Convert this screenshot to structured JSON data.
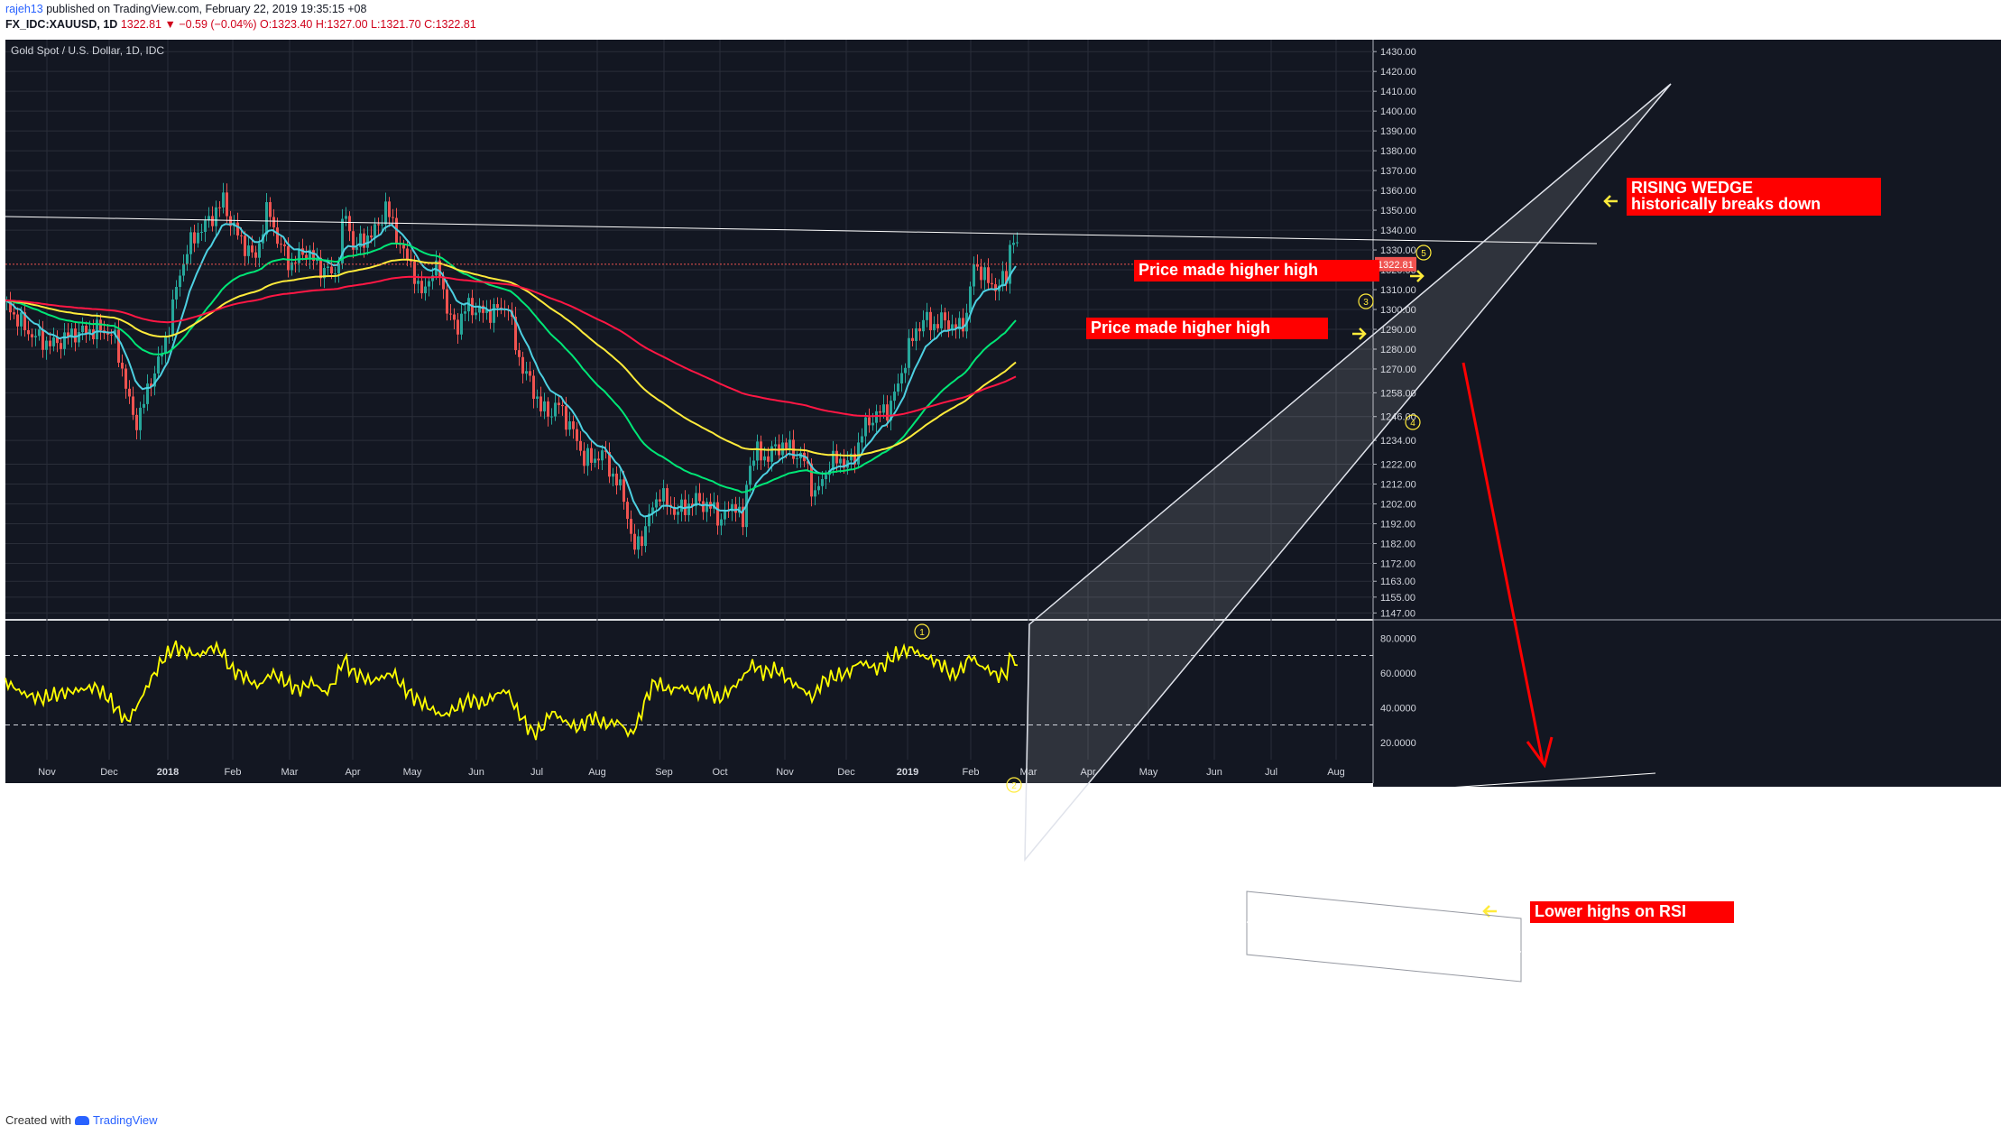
{
  "header": {
    "author": "rajeh13",
    "published": "published on TradingView.com, February 22, 2019 19:35:15 +08",
    "symbol": "FX_IDC:XAUUSD, 1D",
    "last": "1322.81",
    "change": "▼ −0.59 (−0.04%)",
    "ohlc": "O:1323.40 H:1327.00 L:1321.70 C:1322.81"
  },
  "chart_data": {
    "type": "candlestick",
    "title": "Gold Spot / U.S. Dollar, 1D, IDC",
    "price_axis": {
      "ylim": [
        1144,
        1436
      ],
      "ticks": [
        "1430.00",
        "1420.00",
        "1410.00",
        "1400.00",
        "1390.00",
        "1380.00",
        "1370.00",
        "1360.00",
        "1350.00",
        "1340.00",
        "1330.00",
        "1320.00",
        "1310.00",
        "1300.00",
        "1290.00",
        "1280.00",
        "1270.00",
        "1258.00",
        "1246.00",
        "1234.00",
        "1222.00",
        "1212.00",
        "1202.00",
        "1192.00",
        "1182.00",
        "1172.00",
        "1163.00",
        "1155.00",
        "1147.00"
      ],
      "current_price": "1322.81"
    },
    "time_axis": [
      "Nov",
      "Dec",
      "2018",
      "Feb",
      "Mar",
      "Apr",
      "May",
      "Jun",
      "Jul",
      "Aug",
      "Sep",
      "Oct",
      "Nov",
      "Dec",
      "2019",
      "Feb",
      "Mar",
      "Apr",
      "May",
      "Jun",
      "Jul",
      "Aug"
    ],
    "price_path": [
      [
        0,
        1302
      ],
      [
        25,
        1288
      ],
      [
        50,
        1282
      ],
      [
        75,
        1288
      ],
      [
        100,
        1290
      ],
      [
        118,
        1288
      ],
      [
        128,
        1270
      ],
      [
        135,
        1255
      ],
      [
        142,
        1242
      ],
      [
        150,
        1250
      ],
      [
        160,
        1265
      ],
      [
        170,
        1275
      ],
      [
        180,
        1292
      ],
      [
        190,
        1315
      ],
      [
        200,
        1330
      ],
      [
        210,
        1338
      ],
      [
        225,
        1345
      ],
      [
        240,
        1355
      ],
      [
        250,
        1342
      ],
      [
        260,
        1335
      ],
      [
        275,
        1325
      ],
      [
        290,
        1352
      ],
      [
        300,
        1335
      ],
      [
        315,
        1322
      ],
      [
        330,
        1330
      ],
      [
        350,
        1320
      ],
      [
        365,
        1318
      ],
      [
        375,
        1350
      ],
      [
        385,
        1330
      ],
      [
        395,
        1335
      ],
      [
        410,
        1340
      ],
      [
        420,
        1352
      ],
      [
        430,
        1340
      ],
      [
        440,
        1328
      ],
      [
        450,
        1322
      ],
      [
        458,
        1306
      ],
      [
        470,
        1318
      ],
      [
        480,
        1320
      ],
      [
        490,
        1295
      ],
      [
        500,
        1292
      ],
      [
        510,
        1302
      ],
      [
        520,
        1300
      ],
      [
        530,
        1298
      ],
      [
        545,
        1300
      ],
      [
        556,
        1302
      ],
      [
        562,
        1285
      ],
      [
        572,
        1270
      ],
      [
        582,
        1262
      ],
      [
        592,
        1250
      ],
      [
        602,
        1248
      ],
      [
        612,
        1252
      ],
      [
        620,
        1245
      ],
      [
        628,
        1238
      ],
      [
        640,
        1225
      ],
      [
        650,
        1224
      ],
      [
        660,
        1228
      ],
      [
        670,
        1218
      ],
      [
        680,
        1210
      ],
      [
        688,
        1198
      ],
      [
        694,
        1178
      ],
      [
        700,
        1182
      ],
      [
        708,
        1190
      ],
      [
        716,
        1200
      ],
      [
        724,
        1208
      ],
      [
        732,
        1202
      ],
      [
        742,
        1198
      ],
      [
        752,
        1200
      ],
      [
        762,
        1204
      ],
      [
        772,
        1202
      ],
      [
        782,
        1200
      ],
      [
        790,
        1194
      ],
      [
        800,
        1198
      ],
      [
        808,
        1203
      ],
      [
        816,
        1190
      ],
      [
        822,
        1222
      ],
      [
        832,
        1228
      ],
      [
        842,
        1225
      ],
      [
        852,
        1230
      ],
      [
        862,
        1232
      ],
      [
        872,
        1228
      ],
      [
        882,
        1225
      ],
      [
        888,
        1220
      ],
      [
        895,
        1205
      ],
      [
        902,
        1212
      ],
      [
        912,
        1222
      ],
      [
        922,
        1225
      ],
      [
        932,
        1222
      ],
      [
        940,
        1226
      ],
      [
        948,
        1238
      ],
      [
        958,
        1245
      ],
      [
        968,
        1248
      ],
      [
        978,
        1250
      ],
      [
        988,
        1262
      ],
      [
        998,
        1278
      ],
      [
        1008,
        1290
      ],
      [
        1018,
        1295
      ],
      [
        1028,
        1292
      ],
      [
        1040,
        1295
      ],
      [
        1050,
        1290
      ],
      [
        1058,
        1292
      ],
      [
        1064,
        1298
      ],
      [
        1072,
        1322
      ],
      [
        1080,
        1320
      ],
      [
        1090,
        1312
      ],
      [
        1098,
        1312
      ],
      [
        1108,
        1316
      ],
      [
        1114,
        1340
      ],
      [
        1120,
        1330
      ],
      [
        1122,
        1323
      ]
    ],
    "moving_averages": [
      "EMA (cyan)",
      "EMA 50 (green)",
      "EMA 100 (yellow)",
      "EMA 200 (red)"
    ],
    "annotations": [
      {
        "text": "RISING WEDGE",
        "color": "#ff0000"
      },
      {
        "text": "historically breaks down",
        "color": "#ff0000"
      },
      {
        "text": "Price made higher high",
        "color": "#ff0000"
      },
      {
        "text": "Price made higher high",
        "color": "#ff0000"
      },
      {
        "text": "Lower highs on RSI",
        "color": "#ff0000"
      }
    ],
    "wave_labels": [
      "1",
      "2",
      "3",
      "4",
      "5"
    ],
    "rsi": {
      "ylim": [
        10,
        90
      ],
      "ticks": [
        "80.0000",
        "60.0000",
        "40.0000",
        "20.0000"
      ],
      "levels": [
        70,
        30
      ],
      "path": [
        [
          0,
          55
        ],
        [
          20,
          48
        ],
        [
          40,
          45
        ],
        [
          60,
          48
        ],
        [
          80,
          50
        ],
        [
          100,
          52
        ],
        [
          115,
          45
        ],
        [
          125,
          38
        ],
        [
          135,
          32
        ],
        [
          145,
          40
        ],
        [
          160,
          55
        ],
        [
          175,
          68
        ],
        [
          188,
          75
        ],
        [
          200,
          72
        ],
        [
          215,
          70
        ],
        [
          230,
          75
        ],
        [
          240,
          72
        ],
        [
          250,
          62
        ],
        [
          265,
          58
        ],
        [
          280,
          52
        ],
        [
          295,
          60
        ],
        [
          310,
          55
        ],
        [
          325,
          50
        ],
        [
          340,
          55
        ],
        [
          355,
          48
        ],
        [
          365,
          55
        ],
        [
          375,
          68
        ],
        [
          385,
          60
        ],
        [
          395,
          58
        ],
        [
          405,
          55
        ],
        [
          420,
          58
        ],
        [
          430,
          60
        ],
        [
          440,
          52
        ],
        [
          455,
          45
        ],
        [
          470,
          40
        ],
        [
          485,
          35
        ],
        [
          500,
          40
        ],
        [
          515,
          45
        ],
        [
          530,
          42
        ],
        [
          545,
          48
        ],
        [
          556,
          50
        ],
        [
          565,
          40
        ],
        [
          575,
          32
        ],
        [
          585,
          25
        ],
        [
          595,
          28
        ],
        [
          605,
          38
        ],
        [
          620,
          32
        ],
        [
          635,
          28
        ],
        [
          650,
          35
        ],
        [
          665,
          30
        ],
        [
          680,
          32
        ],
        [
          692,
          24
        ],
        [
          700,
          30
        ],
        [
          710,
          45
        ],
        [
          720,
          55
        ],
        [
          735,
          50
        ],
        [
          750,
          52
        ],
        [
          765,
          48
        ],
        [
          780,
          50
        ],
        [
          790,
          44
        ],
        [
          798,
          48
        ],
        [
          808,
          52
        ],
        [
          818,
          58
        ],
        [
          828,
          65
        ],
        [
          840,
          60
        ],
        [
          855,
          62
        ],
        [
          870,
          55
        ],
        [
          885,
          50
        ],
        [
          895,
          45
        ],
        [
          905,
          55
        ],
        [
          920,
          58
        ],
        [
          935,
          60
        ],
        [
          945,
          66
        ],
        [
          955,
          65
        ],
        [
          965,
          62
        ],
        [
          975,
          65
        ],
        [
          985,
          70
        ],
        [
          995,
          72
        ],
        [
          1005,
          74
        ],
        [
          1015,
          70
        ],
        [
          1025,
          68
        ],
        [
          1040,
          64
        ],
        [
          1050,
          58
        ],
        [
          1060,
          62
        ],
        [
          1070,
          70
        ],
        [
          1080,
          64
        ],
        [
          1090,
          62
        ],
        [
          1100,
          58
        ],
        [
          1110,
          60
        ],
        [
          1116,
          72
        ],
        [
          1122,
          60
        ]
      ],
      "channel": "descending",
      "annotation": "Lower highs on RSI"
    },
    "colors": {
      "background": "#131722",
      "candle_up": "#26a69a",
      "candle_down": "#ef5350",
      "ema_cyan": "#4dd0e1",
      "ema_green": "#00e676",
      "ema_yellow": "#ffeb3b",
      "ema_red": "#ff1744",
      "rsi": "#ffff00",
      "annotation_bg": "#ff0000",
      "annotation_text": "#ffffff"
    }
  },
  "footer": {
    "created_with": "Created with",
    "brand": "TradingView"
  }
}
